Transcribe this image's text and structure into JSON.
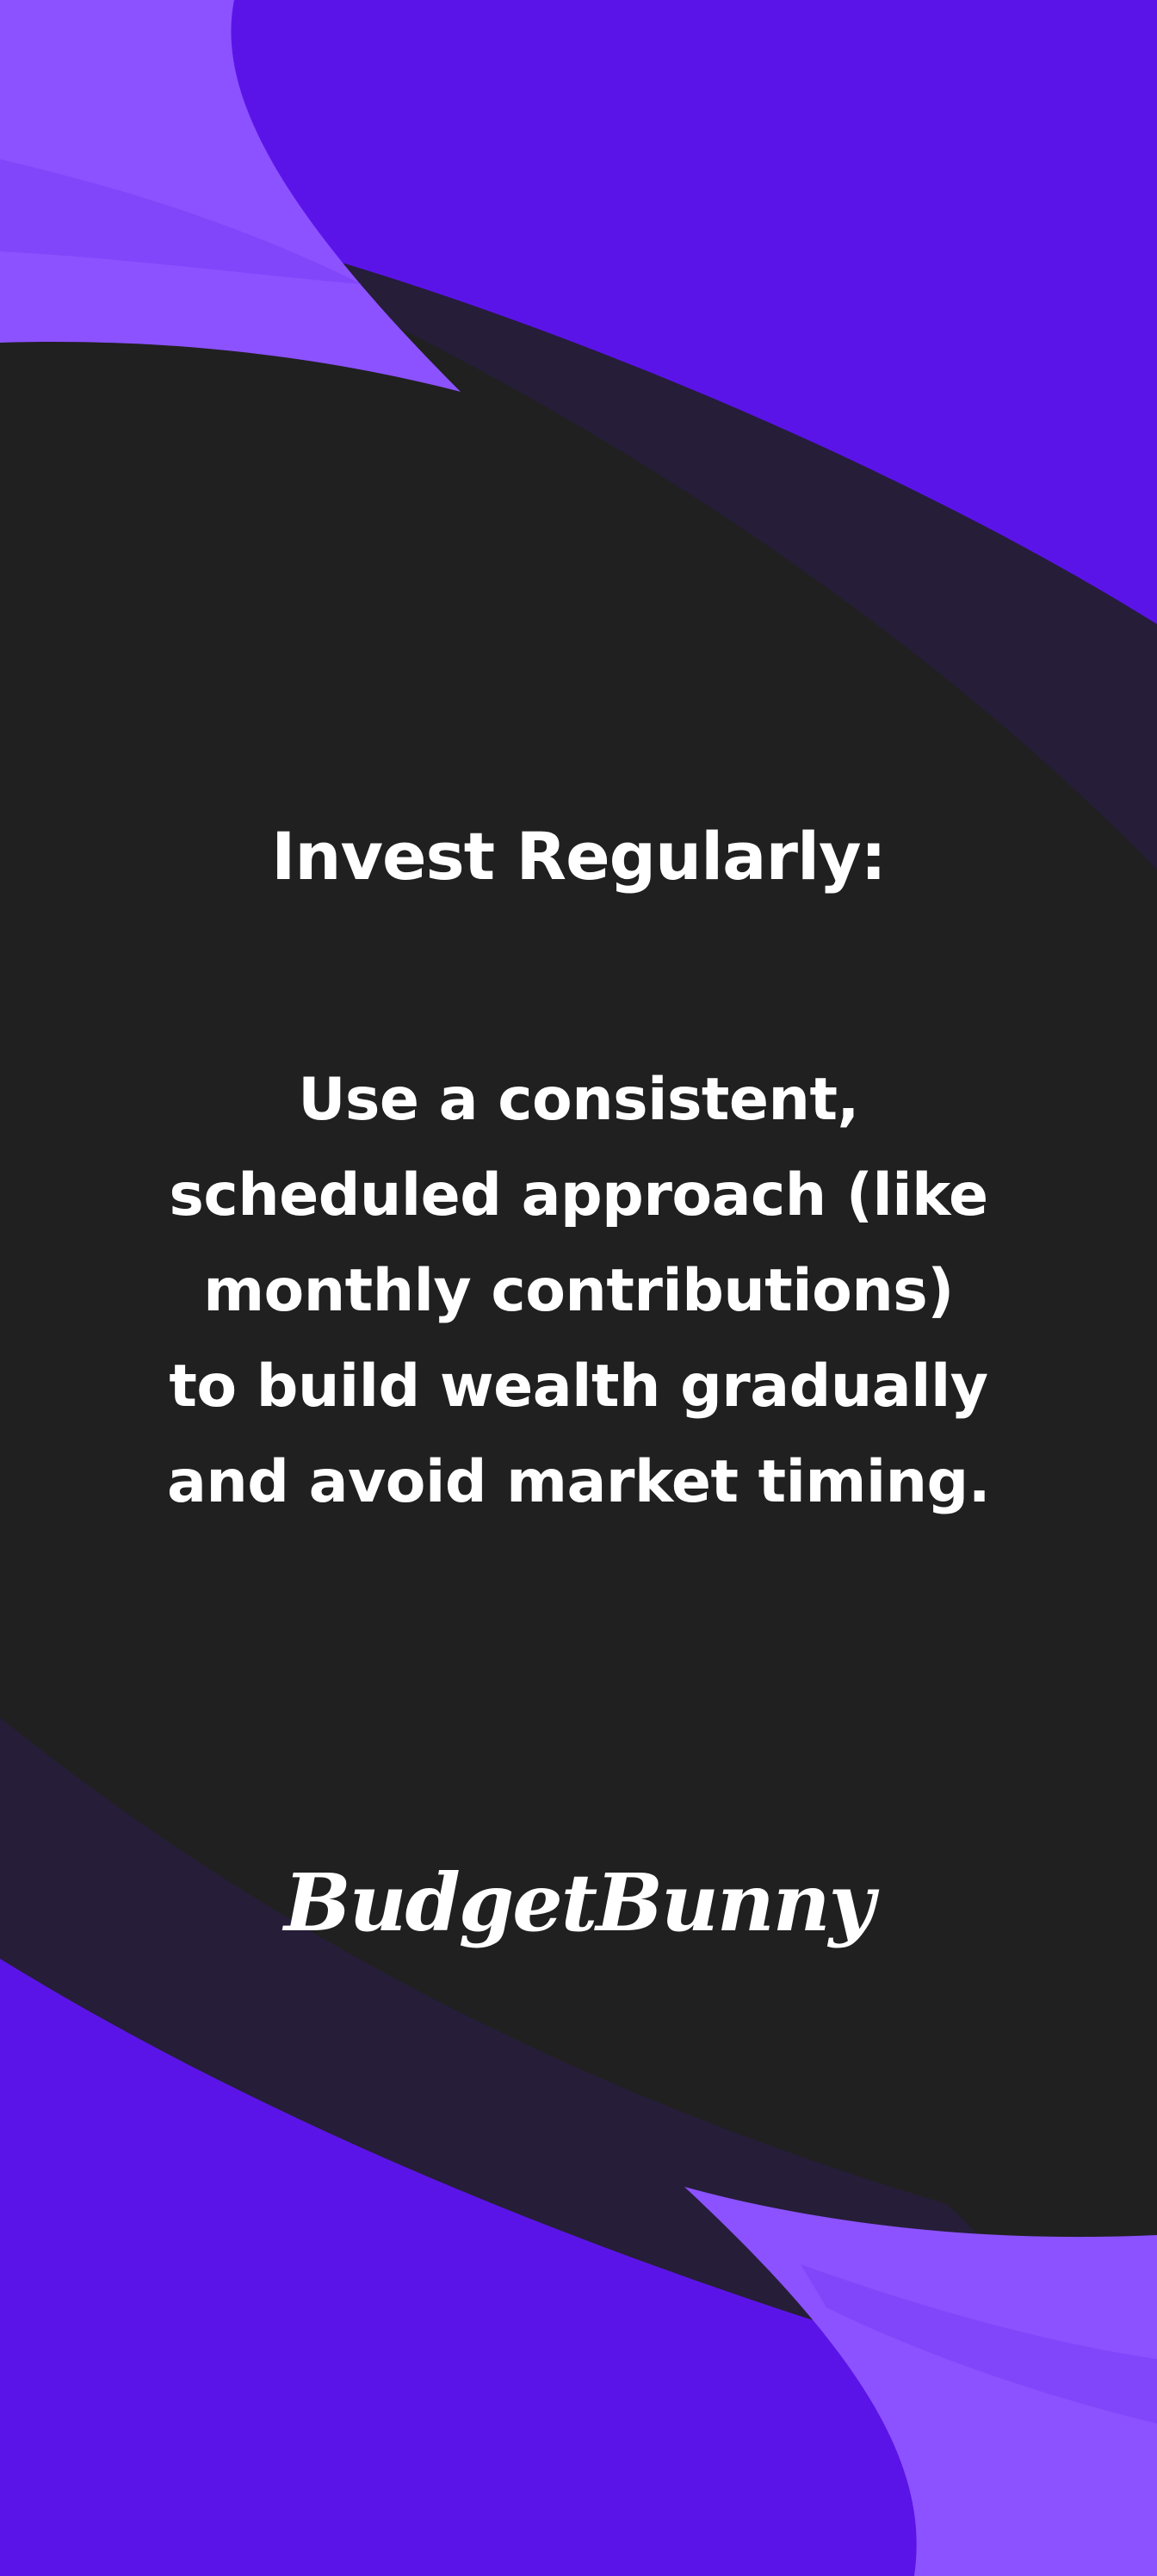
{
  "slide": {
    "heading": "Invest Regularly:",
    "body_lines": [
      "Use a consistent,",
      "scheduled approach (like",
      "monthly contributions)",
      "to build wealth gradually",
      "and avoid market timing."
    ],
    "brand": "BudgetBunny"
  },
  "colors": {
    "background": "#202020",
    "purple_deep": "#5b14e8",
    "purple_light": "#8c52ff",
    "purple_mid": "#7a3cf5",
    "band_dark": "#261d38",
    "text": "#ffffff"
  }
}
